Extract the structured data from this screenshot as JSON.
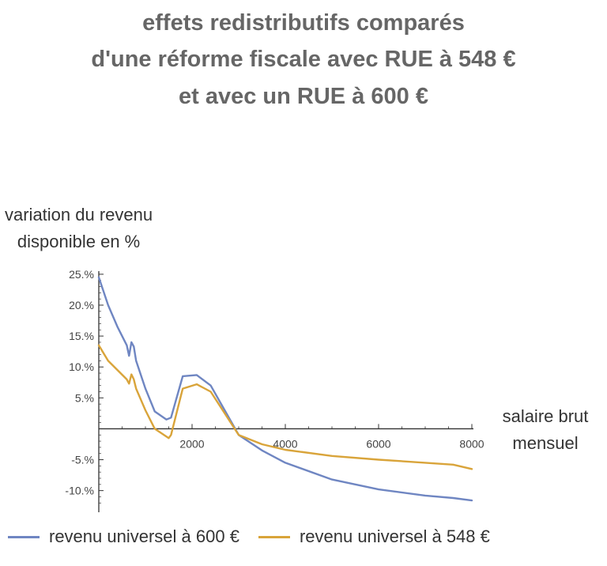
{
  "title_lines": [
    "effets redistributifs comparés",
    "d'une réforme fiscale avec RUE à 548 €",
    "et avec un RUE à 600 €"
  ],
  "ylabel_lines": [
    "variation du revenu",
    "disponible en %"
  ],
  "xlabel_lines": [
    "salaire brut",
    "mensuel"
  ],
  "colors": {
    "rue600": "#6f86c2",
    "rue548": "#d9a43a",
    "axis": "#333333"
  },
  "chart_data": {
    "type": "line",
    "title": "effets redistributifs comparés d'une réforme fiscale avec RUE à 548 € et avec un RUE à 600 €",
    "xlabel": "salaire brut mensuel",
    "ylabel": "variation du revenu disponible en %",
    "xlim": [
      0,
      8000
    ],
    "ylim": [
      -13.5,
      25.5
    ],
    "x_ticks": [
      2000,
      4000,
      6000,
      8000
    ],
    "x_tick_labels": [
      "2000",
      "4000",
      "6000",
      "8000"
    ],
    "y_ticks": [
      -10,
      -5,
      5,
      10,
      15,
      20,
      25
    ],
    "y_tick_labels": [
      "-10.%",
      "-5.%",
      "5.%",
      "10.%",
      "15.%",
      "20.%",
      "25.%"
    ],
    "legend_position": "bottom",
    "series": [
      {
        "name": "revenu universel à 600 €",
        "color": "#6f86c2",
        "x": [
          0,
          200,
          400,
          600,
          650,
          700,
          750,
          800,
          1000,
          1200,
          1450,
          1550,
          1800,
          2100,
          2400,
          2700,
          3000,
          3500,
          4000,
          5000,
          6000,
          7000,
          7600,
          8000
        ],
        "y": [
          24.5,
          20,
          16.5,
          13.5,
          11.8,
          14,
          13.3,
          11,
          6.5,
          2.8,
          1.5,
          1.8,
          8.5,
          8.7,
          7,
          3,
          -1,
          -3.5,
          -5.5,
          -8.2,
          -9.8,
          -10.8,
          -11.2,
          -11.6
        ]
      },
      {
        "name": "revenu universel à 548 €",
        "color": "#d9a43a",
        "x": [
          0,
          200,
          400,
          600,
          650,
          700,
          750,
          800,
          1000,
          1200,
          1500,
          1550,
          1800,
          2100,
          2400,
          2700,
          3000,
          3500,
          4000,
          5000,
          6000,
          7000,
          7600,
          8000
        ],
        "y": [
          13.5,
          11,
          9.5,
          8,
          7.3,
          8.8,
          8,
          6.5,
          3,
          0,
          -1.5,
          -1,
          6.5,
          7.2,
          6,
          2.5,
          -1,
          -2.5,
          -3.4,
          -4.4,
          -5,
          -5.5,
          -5.8,
          -6.5
        ]
      }
    ]
  }
}
